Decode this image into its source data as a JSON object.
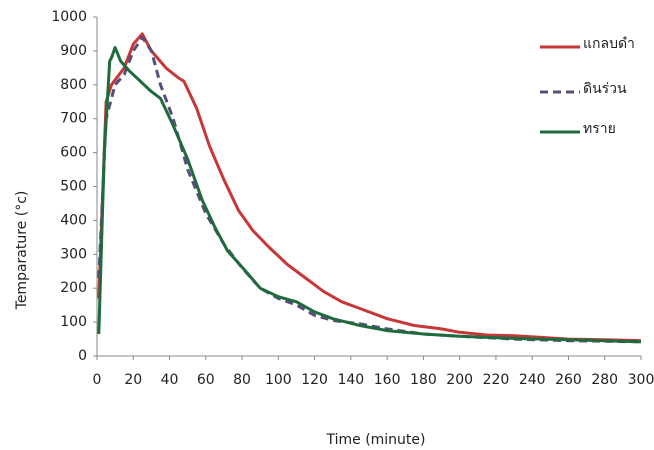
{
  "chart_data": {
    "type": "line",
    "x_label": "Time (minute)",
    "y_label": "Temparature (°c)",
    "xlim": [
      0,
      300
    ],
    "xticks": [
      0,
      20,
      40,
      60,
      80,
      100,
      120,
      140,
      160,
      180,
      200,
      220,
      240,
      260,
      280,
      300
    ],
    "ylim": [
      0,
      1000
    ],
    "yticks": [
      0,
      100,
      200,
      300,
      400,
      500,
      600,
      700,
      800,
      900,
      1000
    ],
    "grid": false,
    "series": [
      {
        "name": "แกลบดำ",
        "color": "#c83737",
        "dash": false,
        "x": [
          1,
          5,
          8,
          15,
          20,
          25,
          30,
          38,
          45,
          48,
          55,
          62,
          70,
          78,
          86,
          95,
          105,
          115,
          125,
          135,
          145,
          160,
          175,
          190,
          200,
          215,
          230,
          245,
          260,
          280,
          300
        ],
        "values": [
          170,
          750,
          800,
          850,
          920,
          950,
          900,
          850,
          820,
          810,
          730,
          620,
          520,
          430,
          370,
          320,
          270,
          230,
          190,
          160,
          140,
          110,
          90,
          80,
          70,
          62,
          60,
          55,
          50,
          48,
          45
        ]
      },
      {
        "name": "ดินร่วน",
        "color": "#5b4c7c",
        "dash": true,
        "x": [
          1,
          5,
          10,
          15,
          20,
          25,
          30,
          35,
          42,
          50,
          60,
          70,
          80,
          90,
          100,
          110,
          120,
          130,
          145,
          160,
          180,
          200,
          230,
          260,
          300
        ],
        "values": [
          230,
          700,
          800,
          830,
          900,
          940,
          900,
          800,
          700,
          550,
          420,
          330,
          260,
          200,
          170,
          150,
          120,
          105,
          95,
          80,
          65,
          58,
          50,
          45,
          42
        ]
      },
      {
        "name": "ทราย",
        "color": "#1f6b3d",
        "dash": false,
        "x": [
          1,
          4,
          7,
          8,
          10,
          13,
          18,
          22,
          26,
          30,
          35,
          42,
          50,
          58,
          65,
          72,
          82,
          90,
          100,
          110,
          120,
          130,
          145,
          160,
          180,
          200,
          230,
          260,
          280,
          300
        ],
        "values": [
          65,
          600,
          870,
          880,
          910,
          870,
          840,
          820,
          800,
          780,
          760,
          680,
          580,
          460,
          380,
          310,
          250,
          200,
          175,
          160,
          130,
          110,
          90,
          75,
          65,
          58,
          52,
          48,
          45,
          42
        ]
      }
    ]
  }
}
